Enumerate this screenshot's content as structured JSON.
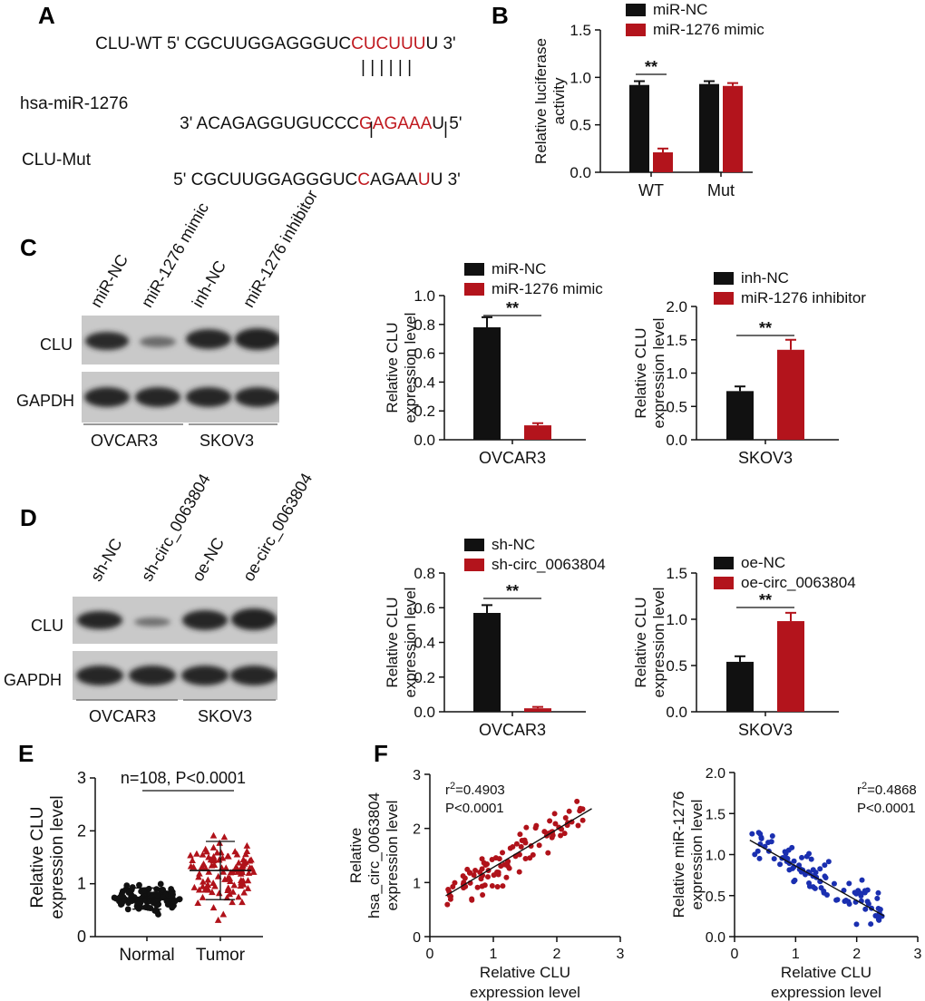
{
  "colors": {
    "black": "#111111",
    "red": "#b3141c",
    "blue": "#1a2fb0",
    "darkred": "#b0121a"
  },
  "panelA": {
    "letter": "A",
    "wt_name": "CLU-WT",
    "wt_prefix": "5' CGCUUGGAGGGUC",
    "wt_red": "CUCUUU",
    "wt_suffix": "U 3'",
    "wt_pairs": "| | | | | |",
    "mir_name": "hsa-miR-1276",
    "mir_prefix": "3' ACAGAGGUGUCCC",
    "mir_red": "GAGAAA",
    "mir_suffix": "U 5'",
    "mut_pairs_1": "|",
    "mut_pairs_2": "|",
    "mut_name": "CLU-Mut",
    "mut_prefix": "5' CGCUUGGAGGGUC",
    "mut_red1": "C",
    "mut_mid": "AGAA",
    "mut_red2": "U",
    "mut_suffix": "U 3'"
  },
  "panelC": {
    "letter": "C",
    "lanes": [
      "miR-NC",
      "miR-1276 mimic",
      "inh-NC",
      "miR-1276 inhibitor"
    ],
    "rows": [
      "CLU",
      "GAPDH"
    ],
    "cells": [
      "OVCAR3",
      "SKOV3"
    ]
  },
  "panelD": {
    "letter": "D",
    "lanes": [
      "sh-NC",
      "sh-circ_0063804",
      "oe-NC",
      "oe-circ_0063804"
    ],
    "rows": [
      "CLU",
      "GAPDH"
    ],
    "cells": [
      "OVCAR3",
      "SKOV3"
    ]
  },
  "chart_data": [
    {
      "id": "B",
      "type": "bar",
      "letter": "B",
      "categories": [
        "WT",
        "Mut"
      ],
      "series": [
        {
          "name": "miR-NC",
          "values": [
            0.92,
            0.93
          ],
          "errors": [
            0.04,
            0.03
          ]
        },
        {
          "name": "miR-1276 mimic",
          "values": [
            0.21,
            0.91
          ],
          "errors": [
            0.04,
            0.03
          ]
        }
      ],
      "ylabel": "Relative luciferase\nactivity",
      "ylim": [
        0,
        1.5
      ],
      "yticks": [
        "0.0",
        "0.5",
        "1.0",
        "1.5"
      ],
      "significance": [
        {
          "text": "**",
          "category": "WT"
        }
      ]
    },
    {
      "id": "C1",
      "type": "bar",
      "categories": [
        "OVCAR3"
      ],
      "series": [
        {
          "name": "miR-NC",
          "values": [
            0.78
          ],
          "errors": [
            0.07
          ]
        },
        {
          "name": "miR-1276 mimic",
          "values": [
            0.1
          ],
          "errors": [
            0.015
          ]
        }
      ],
      "ylabel": "Relative CLU\nexpression level",
      "ylim": [
        0,
        1.0
      ],
      "yticks": [
        "0.0",
        "0.2",
        "0.4",
        "0.6",
        "0.8",
        "1.0"
      ],
      "significance": [
        {
          "text": "**",
          "category": "OVCAR3"
        }
      ]
    },
    {
      "id": "C2",
      "type": "bar",
      "categories": [
        "SKOV3"
      ],
      "series": [
        {
          "name": "inh-NC",
          "values": [
            0.73
          ],
          "errors": [
            0.07
          ]
        },
        {
          "name": "miR-1276 inhibitor",
          "values": [
            1.35
          ],
          "errors": [
            0.15
          ]
        }
      ],
      "ylabel": "Relative CLU\nexpression level",
      "ylim": [
        0,
        2.0
      ],
      "yticks": [
        "0.0",
        "0.5",
        "1.0",
        "1.5",
        "2.0"
      ],
      "significance": [
        {
          "text": "**",
          "category": "SKOV3"
        }
      ]
    },
    {
      "id": "D1",
      "type": "bar",
      "categories": [
        "OVCAR3"
      ],
      "series": [
        {
          "name": "sh-NC",
          "values": [
            0.57
          ],
          "errors": [
            0.045
          ]
        },
        {
          "name": "sh-circ_0063804",
          "values": [
            0.02
          ],
          "errors": [
            0.008
          ]
        }
      ],
      "ylabel": "Relative CLU\nexpression level",
      "ylim": [
        0,
        0.8
      ],
      "yticks": [
        "0.0",
        "0.2",
        "0.4",
        "0.6",
        "0.8"
      ],
      "significance": [
        {
          "text": "**",
          "category": "OVCAR3"
        }
      ]
    },
    {
      "id": "D2",
      "type": "bar",
      "categories": [
        "SKOV3"
      ],
      "series": [
        {
          "name": "oe-NC",
          "values": [
            0.54
          ],
          "errors": [
            0.06
          ]
        },
        {
          "name": "oe-circ_0063804",
          "values": [
            0.98
          ],
          "errors": [
            0.09
          ]
        }
      ],
      "ylabel": "Relative CLU\nexpression level",
      "ylim": [
        0,
        1.5
      ],
      "yticks": [
        "0.0",
        "0.5",
        "1.0",
        "1.5"
      ],
      "significance": [
        {
          "text": "**",
          "category": "SKOV3"
        }
      ]
    },
    {
      "id": "E",
      "type": "scatter",
      "letter": "E",
      "categories": [
        "Normal",
        "Tumor"
      ],
      "n_per_group": 108,
      "means": [
        0.72,
        1.25
      ],
      "sd": [
        0.2,
        0.55
      ],
      "annotation": "n=108, P<0.0001",
      "ylabel": "Relative CLU\nexpression level",
      "ylim": [
        0,
        3
      ],
      "yticks": [
        "0",
        "1",
        "2",
        "3"
      ]
    },
    {
      "id": "F1",
      "type": "scatter",
      "letter": "F",
      "xlabel": "Relative CLU\nexpression level",
      "ylabel": "Relative\nhsa_circ_0063804\nexpression level",
      "xlim": [
        0,
        3
      ],
      "ylim": [
        0,
        3
      ],
      "xticks": [
        "0",
        "1",
        "2",
        "3"
      ],
      "yticks": [
        "0",
        "1",
        "2",
        "3"
      ],
      "r2_label": "r",
      "r2_sup": "2",
      "r2_value": "=0.4903",
      "p_label": "P<0.0001",
      "fit": {
        "slope": 0.7,
        "intercept": 0.58
      },
      "n_points": 100
    },
    {
      "id": "F2",
      "type": "scatter",
      "xlabel": "Relative CLU\nexpression level",
      "ylabel": "Relative miR-1276\nexpression level",
      "xlim": [
        0,
        3
      ],
      "ylim": [
        0,
        2.0
      ],
      "xticks": [
        "0",
        "1",
        "2",
        "3"
      ],
      "yticks": [
        "0.0",
        "0.5",
        "1.0",
        "1.5",
        "2.0"
      ],
      "r2_label": "r",
      "r2_sup": "2",
      "r2_value": "=0.4868",
      "p_label": "P<0.0001",
      "fit": {
        "slope": -0.42,
        "intercept": 1.28
      },
      "n_points": 100
    }
  ]
}
